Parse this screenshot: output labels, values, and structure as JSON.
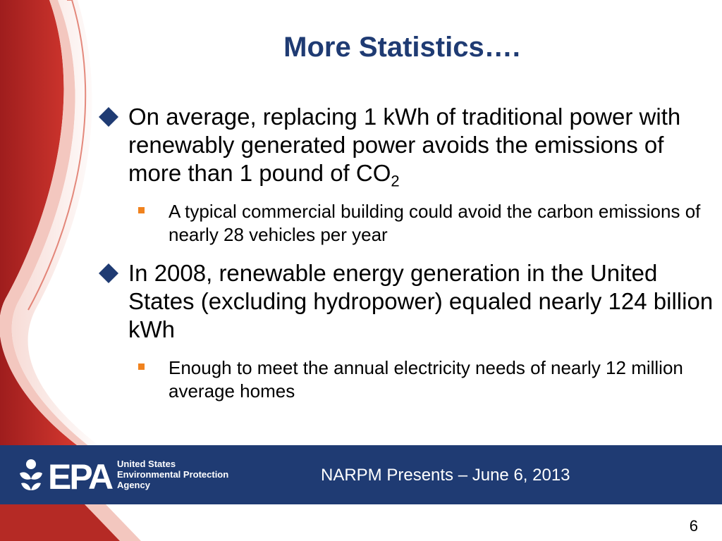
{
  "slide": {
    "title": "More Statistics….",
    "bullets": [
      {
        "text": "On average, replacing 1 kWh of traditional power with renewably generated power avoids the emissions of more than 1 pound of CO",
        "subscript": "2",
        "sub_bullets": [
          "A typical commercial building could avoid the carbon emissions of nearly 28 vehicles per year"
        ]
      },
      {
        "text": "In 2008, renewable energy generation in the United States (excluding hydropower) equaled nearly 124 billion kWh",
        "sub_bullets": [
          "Enough to meet the annual electricity needs of nearly 12 million average homes"
        ]
      }
    ]
  },
  "footer": {
    "logo_text": "EPA",
    "agency_lines": [
      "United States",
      "Environmental Protection",
      "Agency"
    ],
    "presentation": "NARPM  Presents – June 6, 2013",
    "page_number": "6"
  },
  "colors": {
    "title": "#1f3b73",
    "footer_band": "#1f3b73",
    "bullet_diamond": "#1f3b73",
    "sub_bullet_square": "#f0821e",
    "swoosh_red": "#c0302b"
  },
  "icons": {
    "bullet_marker": "diamond-icon",
    "sub_bullet_marker": "square-icon",
    "logo": "epa-flower-icon"
  }
}
